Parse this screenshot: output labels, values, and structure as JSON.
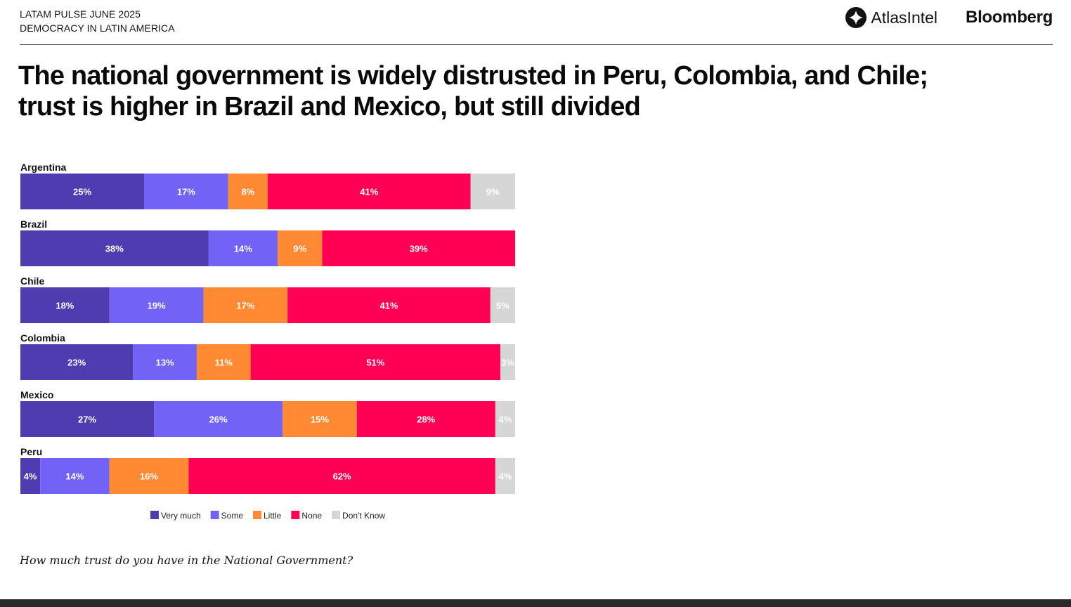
{
  "header": {
    "kicker_line1": "LATAM PULSE JUNE 2025",
    "kicker_line2": "DEMOCRACY IN LATIN AMERICA",
    "logo_atlas": "AtlasIntel",
    "logo_bloomberg": "Bloomberg"
  },
  "headline": "The national government is widely distrusted in Peru, Colombia, and Chile; trust is higher in Brazil and Mexico, but still divided",
  "question": "How much trust do you have in the National Government?",
  "colors": {
    "very_much": "#4e3cb0",
    "some": "#7163f5",
    "little": "#ff8a33",
    "none": "#ff0055",
    "dont_know": "#d6d6d6"
  },
  "chart_data": {
    "type": "bar",
    "orientation": "horizontal-stacked-100",
    "title": "",
    "xlabel": "",
    "ylabel": "",
    "categories": [
      "Argentina",
      "Brazil",
      "Chile",
      "Colombia",
      "Mexico",
      "Peru"
    ],
    "series": [
      {
        "name": "Very much",
        "color": "#4e3cb0",
        "values": [
          25,
          38,
          18,
          23,
          27,
          4
        ]
      },
      {
        "name": "Some",
        "color": "#7163f5",
        "values": [
          17,
          14,
          19,
          13,
          26,
          14
        ]
      },
      {
        "name": "Little",
        "color": "#ff8a33",
        "values": [
          8,
          9,
          17,
          11,
          15,
          16
        ]
      },
      {
        "name": "None",
        "color": "#ff0055",
        "values": [
          41,
          39,
          41,
          51,
          28,
          62
        ]
      },
      {
        "name": "Don't Know",
        "color": "#d6d6d6",
        "values": [
          9,
          0,
          5,
          3,
          4,
          4
        ]
      }
    ],
    "value_suffix": "%",
    "legend_position": "bottom-center",
    "grid": false
  }
}
